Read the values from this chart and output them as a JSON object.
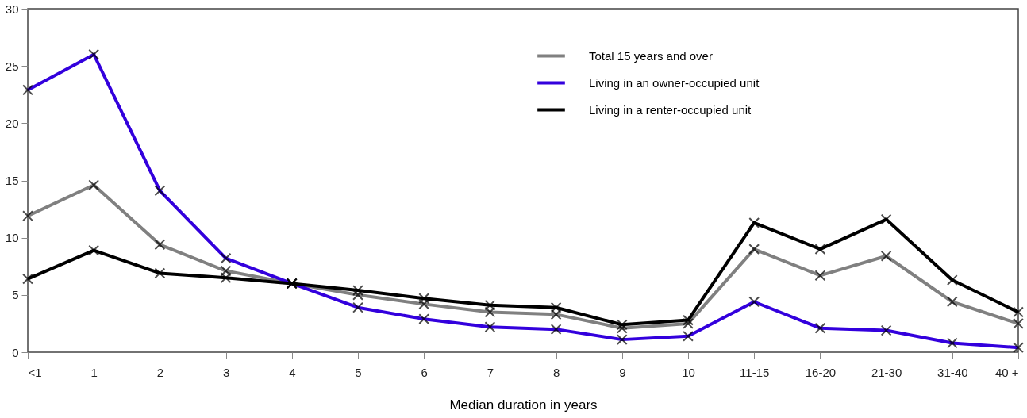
{
  "chart_data": {
    "type": "line",
    "xlabel": "Median duration in years",
    "categories": [
      "<1",
      "1",
      "2",
      "3",
      "4",
      "5",
      "6",
      "7",
      "8",
      "9",
      "10",
      "11-15",
      "16-20",
      "21-30",
      "31-40",
      "40 +"
    ],
    "series": [
      {
        "name": "Total 15 years and over",
        "color": "#808080",
        "values": [
          11.9,
          14.6,
          9.4,
          7.1,
          6.0,
          5.0,
          4.2,
          3.5,
          3.3,
          2.1,
          2.5,
          9.0,
          6.7,
          8.4,
          4.4,
          2.5
        ]
      },
      {
        "name": "Living in an owner-occupied unit",
        "color": "#3300dd",
        "values": [
          22.9,
          26.0,
          14.1,
          8.2,
          6.0,
          3.9,
          2.9,
          2.2,
          2.0,
          1.1,
          1.4,
          4.4,
          2.1,
          1.9,
          0.8,
          0.4
        ]
      },
      {
        "name": "Living in a renter-occupied unit",
        "color": "#000000",
        "values": [
          6.4,
          8.9,
          6.9,
          6.5,
          6.0,
          5.4,
          4.7,
          4.1,
          3.9,
          2.4,
          2.8,
          11.3,
          9.0,
          11.6,
          6.3,
          3.5
        ]
      }
    ],
    "ylim": [
      0,
      30
    ],
    "yticks": [
      0,
      5,
      10,
      15,
      20,
      25,
      30
    ],
    "grid": false,
    "legend": "top right",
    "marker": "cross",
    "line_style": "solid"
  }
}
